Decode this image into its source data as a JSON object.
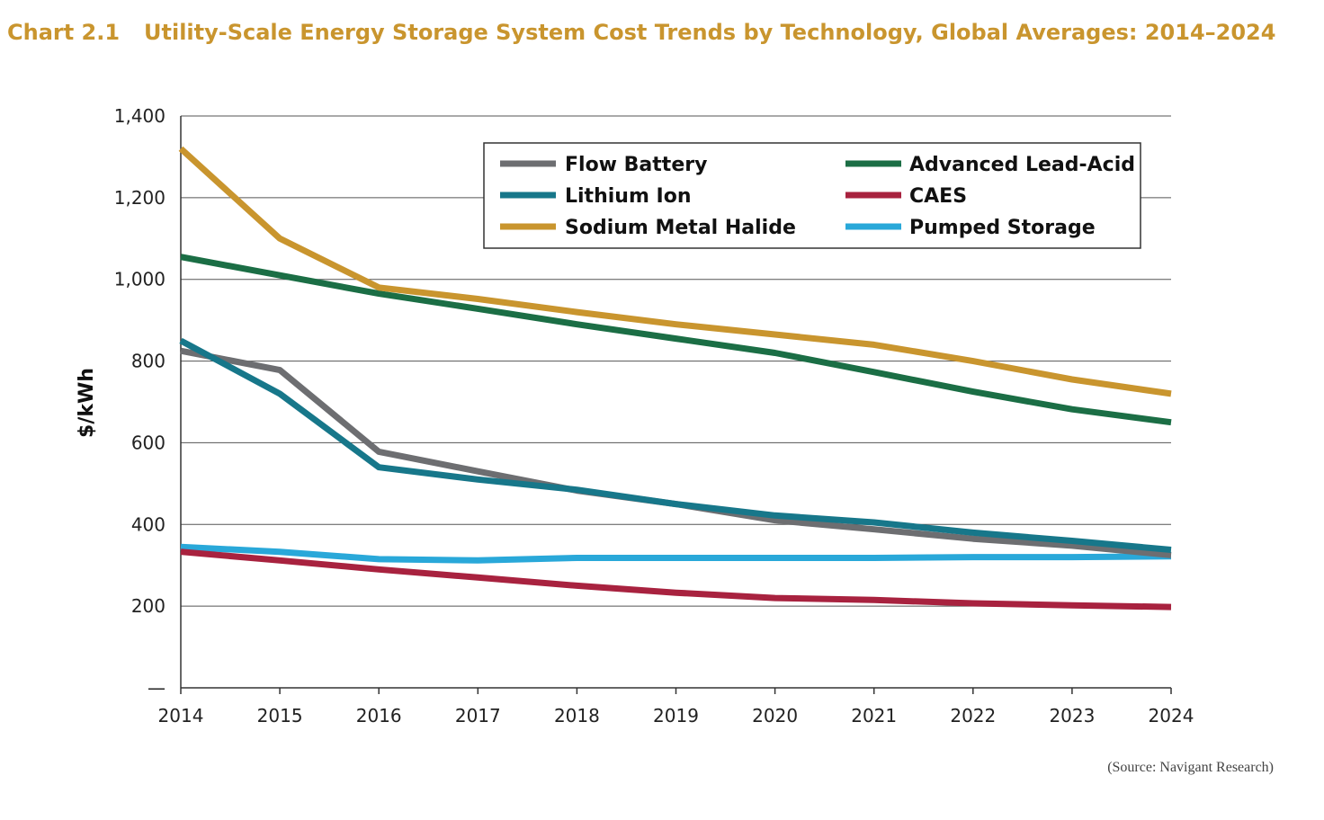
{
  "header": {
    "chart_number": "Chart 2.1",
    "title": "Utility-Scale Energy Storage System Cost Trends by Technology, Global Averages: 2014–2024"
  },
  "source": "(Source: Navigant Research)",
  "chart_data": {
    "type": "line",
    "title": "Utility-Scale Energy Storage System Cost Trends by Technology, Global Averages: 2014–2024",
    "xlabel": "",
    "ylabel": "$/kWh",
    "x": [
      "2014",
      "2015",
      "2016",
      "2017",
      "2018",
      "2019",
      "2020",
      "2021",
      "2022",
      "2023",
      "2024"
    ],
    "ylim": [
      0,
      1400
    ],
    "yticks": [
      0,
      200,
      400,
      600,
      800,
      1000,
      1200,
      1400
    ],
    "ytick_labels": [
      "—",
      "200",
      "400",
      "600",
      "800",
      "1,000",
      "1,200",
      "1,400"
    ],
    "grid": true,
    "legend_position": "top-right",
    "series": [
      {
        "name": "Flow Battery",
        "color": "#6D6E71",
        "values": [
          825,
          778,
          578,
          530,
          483,
          450,
          410,
          388,
          365,
          348,
          325
        ]
      },
      {
        "name": "Advanced Lead-Acid",
        "color": "#1B6E45",
        "values": [
          1055,
          1010,
          965,
          928,
          890,
          855,
          820,
          773,
          725,
          682,
          650
        ]
      },
      {
        "name": "Lithium Ion",
        "color": "#17778A",
        "values": [
          850,
          720,
          540,
          510,
          485,
          450,
          422,
          405,
          380,
          360,
          338
        ]
      },
      {
        "name": "CAES",
        "color": "#A8223F",
        "values": [
          333,
          312,
          290,
          270,
          250,
          233,
          220,
          215,
          207,
          202,
          198
        ]
      },
      {
        "name": "Sodium Metal Halide",
        "color": "#C9952E",
        "values": [
          1320,
          1100,
          980,
          952,
          920,
          890,
          865,
          840,
          800,
          755,
          720
        ]
      },
      {
        "name": "Pumped Storage",
        "color": "#29A8D9",
        "values": [
          345,
          333,
          315,
          312,
          318,
          318,
          318,
          318,
          320,
          320,
          322
        ]
      }
    ]
  }
}
